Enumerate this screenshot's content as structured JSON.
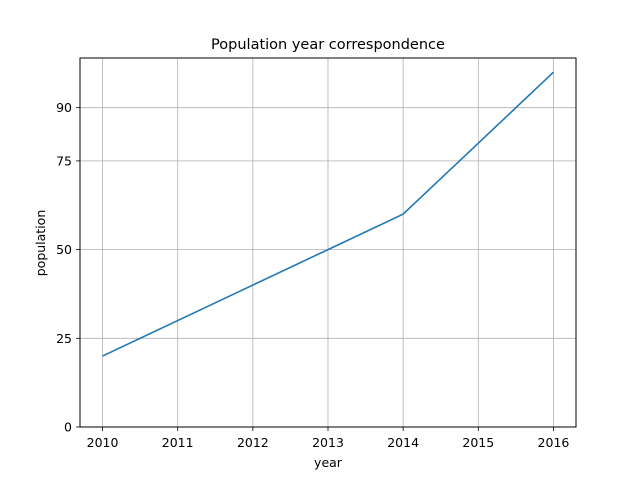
{
  "chart_data": {
    "type": "line",
    "title": "Population year correspondence",
    "xlabel": "year",
    "ylabel": "population",
    "x": [
      2010,
      2011,
      2012,
      2013,
      2014,
      2015,
      2016
    ],
    "series": [
      {
        "values": [
          20,
          30,
          40,
          50,
          60,
          80,
          100
        ]
      }
    ],
    "xticks": [
      "2010",
      "2011",
      "2012",
      "2013",
      "2014",
      "2015",
      "2016"
    ],
    "yticks": [
      0,
      25,
      50,
      75,
      90
    ],
    "xlim": [
      2009.7,
      2016.3
    ],
    "ylim": [
      0,
      104
    ],
    "grid": true,
    "line_color": "#1f77b4"
  }
}
